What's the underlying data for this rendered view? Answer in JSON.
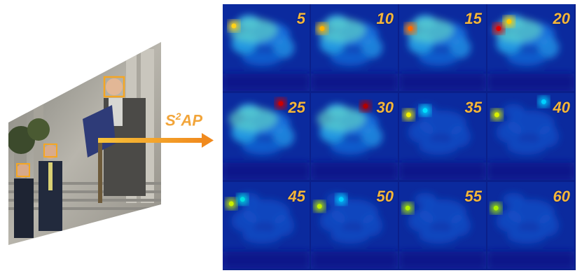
{
  "method_label": {
    "base": "S",
    "superscript": "2",
    "suffix": "AP"
  },
  "heatmap_grid": {
    "rows": 3,
    "cols": 4,
    "tiles": [
      {
        "label": "5",
        "hot_spots": [
          [
            0.08,
            0.25,
            "#ffd21a"
          ]
        ]
      },
      {
        "label": "10",
        "hot_spots": [
          [
            0.08,
            0.28,
            "#ffb300"
          ]
        ]
      },
      {
        "label": "15",
        "hot_spots": [
          [
            0.08,
            0.28,
            "#ff6a00"
          ]
        ]
      },
      {
        "label": "20",
        "hot_spots": [
          [
            0.08,
            0.28,
            "#e00000"
          ],
          [
            0.2,
            0.2,
            "#ffcc00"
          ]
        ]
      },
      {
        "label": "25",
        "hot_spots": [
          [
            0.62,
            0.12,
            "#cc0000"
          ]
        ]
      },
      {
        "label": "30",
        "hot_spots": [
          [
            0.58,
            0.15,
            "#b00000"
          ]
        ]
      },
      {
        "label": "35",
        "hot_spots": [
          [
            0.06,
            0.25,
            "#f0f000"
          ],
          [
            0.25,
            0.2,
            "#00e0ff"
          ]
        ]
      },
      {
        "label": "40",
        "hot_spots": [
          [
            0.06,
            0.25,
            "#d8f000"
          ],
          [
            0.6,
            0.1,
            "#00d0ff"
          ]
        ]
      },
      {
        "label": "45",
        "hot_spots": [
          [
            0.05,
            0.25,
            "#c8f000"
          ],
          [
            0.18,
            0.2,
            "#00e0e0"
          ]
        ]
      },
      {
        "label": "50",
        "hot_spots": [
          [
            0.05,
            0.28,
            "#bff000"
          ],
          [
            0.3,
            0.2,
            "#00d0ff"
          ]
        ]
      },
      {
        "label": "55",
        "hot_spots": [
          [
            0.05,
            0.3,
            "#b0f000"
          ]
        ]
      },
      {
        "label": "60",
        "hot_spots": [
          [
            0.05,
            0.3,
            "#a8f000"
          ]
        ]
      }
    ]
  },
  "colors": {
    "arrow": "#f0a020",
    "face_box": "#f5a623",
    "label": "#f5b63a"
  }
}
